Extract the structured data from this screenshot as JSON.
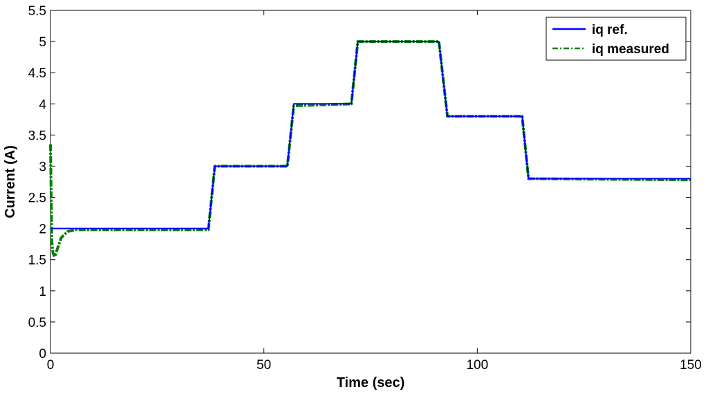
{
  "chart_data": {
    "type": "line",
    "title": "",
    "xlabel": "Time (sec)",
    "ylabel": "Current (A)",
    "xlim": [
      0,
      150
    ],
    "ylim": [
      0,
      5.5
    ],
    "xticks": [
      0,
      50,
      100,
      150
    ],
    "yticks": [
      0,
      0.5,
      1,
      1.5,
      2,
      2.5,
      3,
      3.5,
      4,
      4.5,
      5,
      5.5
    ],
    "xtick_labels": [
      "0",
      "50",
      "100",
      "150"
    ],
    "ytick_labels": [
      "0",
      "0.5",
      "1",
      "1.5",
      "2",
      "2.5",
      "3",
      "3.5",
      "4",
      "4.5",
      "5",
      "5.5"
    ],
    "grid": false,
    "legend_position": "top-right",
    "series": [
      {
        "name": "iq ref.",
        "color": "#0000ff",
        "style": "solid",
        "x": [
          0,
          37,
          38.5,
          55.5,
          57,
          70.5,
          72,
          91,
          93,
          110.5,
          112,
          150
        ],
        "y": [
          2,
          2,
          3,
          3,
          4,
          4,
          5,
          5,
          3.8,
          3.8,
          2.8,
          2.8
        ]
      },
      {
        "name": "iq measured",
        "color": "#008000",
        "style": "dash-dot",
        "x": [
          0,
          0.3,
          0.6,
          1,
          1.5,
          2.5,
          4,
          6,
          14.5,
          15,
          29.5,
          37,
          38.5,
          55.5,
          57,
          70.5,
          72,
          91,
          93,
          110.5,
          112,
          150
        ],
        "y": [
          3.35,
          1.8,
          1.6,
          1.55,
          1.65,
          1.85,
          1.95,
          1.98,
          1.98,
          1.98,
          1.98,
          1.98,
          3.0,
          3.0,
          3.97,
          4.0,
          5.0,
          5.0,
          3.8,
          3.8,
          2.8,
          2.78
        ]
      }
    ]
  }
}
